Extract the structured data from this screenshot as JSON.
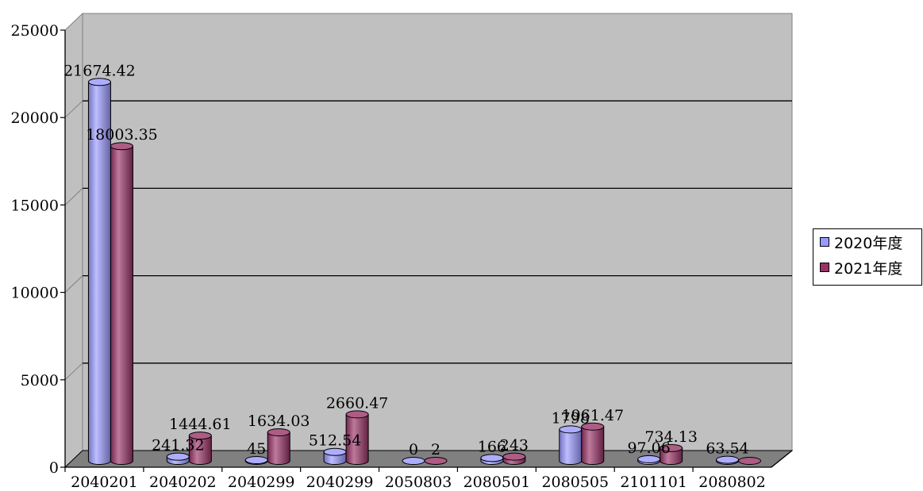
{
  "chart_data": {
    "type": "bar",
    "categories": [
      "2040201",
      "2040202",
      "2040299",
      "2040299",
      "2050803",
      "2080501",
      "2080505",
      "2101101",
      "2080802"
    ],
    "series": [
      {
        "name": "2020年度",
        "color": "#9999FF",
        "values": [
          21674.42,
          241.32,
          45,
          512.54,
          0,
          166,
          1798,
          97.06,
          63.54
        ]
      },
      {
        "name": "2021年度",
        "color": "#993366",
        "values": [
          18003.35,
          1444.61,
          1634.03,
          2660.47,
          2,
          243,
          1961.47,
          734.13,
          0
        ]
      }
    ],
    "data_labels": [
      [
        "21674.42",
        "241.32",
        "45",
        "512.54",
        "0",
        "166",
        "1798",
        "97.06",
        "63.54"
      ],
      [
        "18003.35",
        "1444.61",
        "1634.03",
        "2660.47",
        "2",
        "243",
        "1961.47",
        "734.13",
        ""
      ]
    ],
    "y_ticks": [
      "0",
      "5000",
      "10000",
      "15000",
      "20000",
      "25000"
    ],
    "ylim": [
      0,
      25000
    ],
    "grid": true,
    "legend_position": "right",
    "plot_background": "#C0C0C0",
    "floor_color": "#808080"
  }
}
